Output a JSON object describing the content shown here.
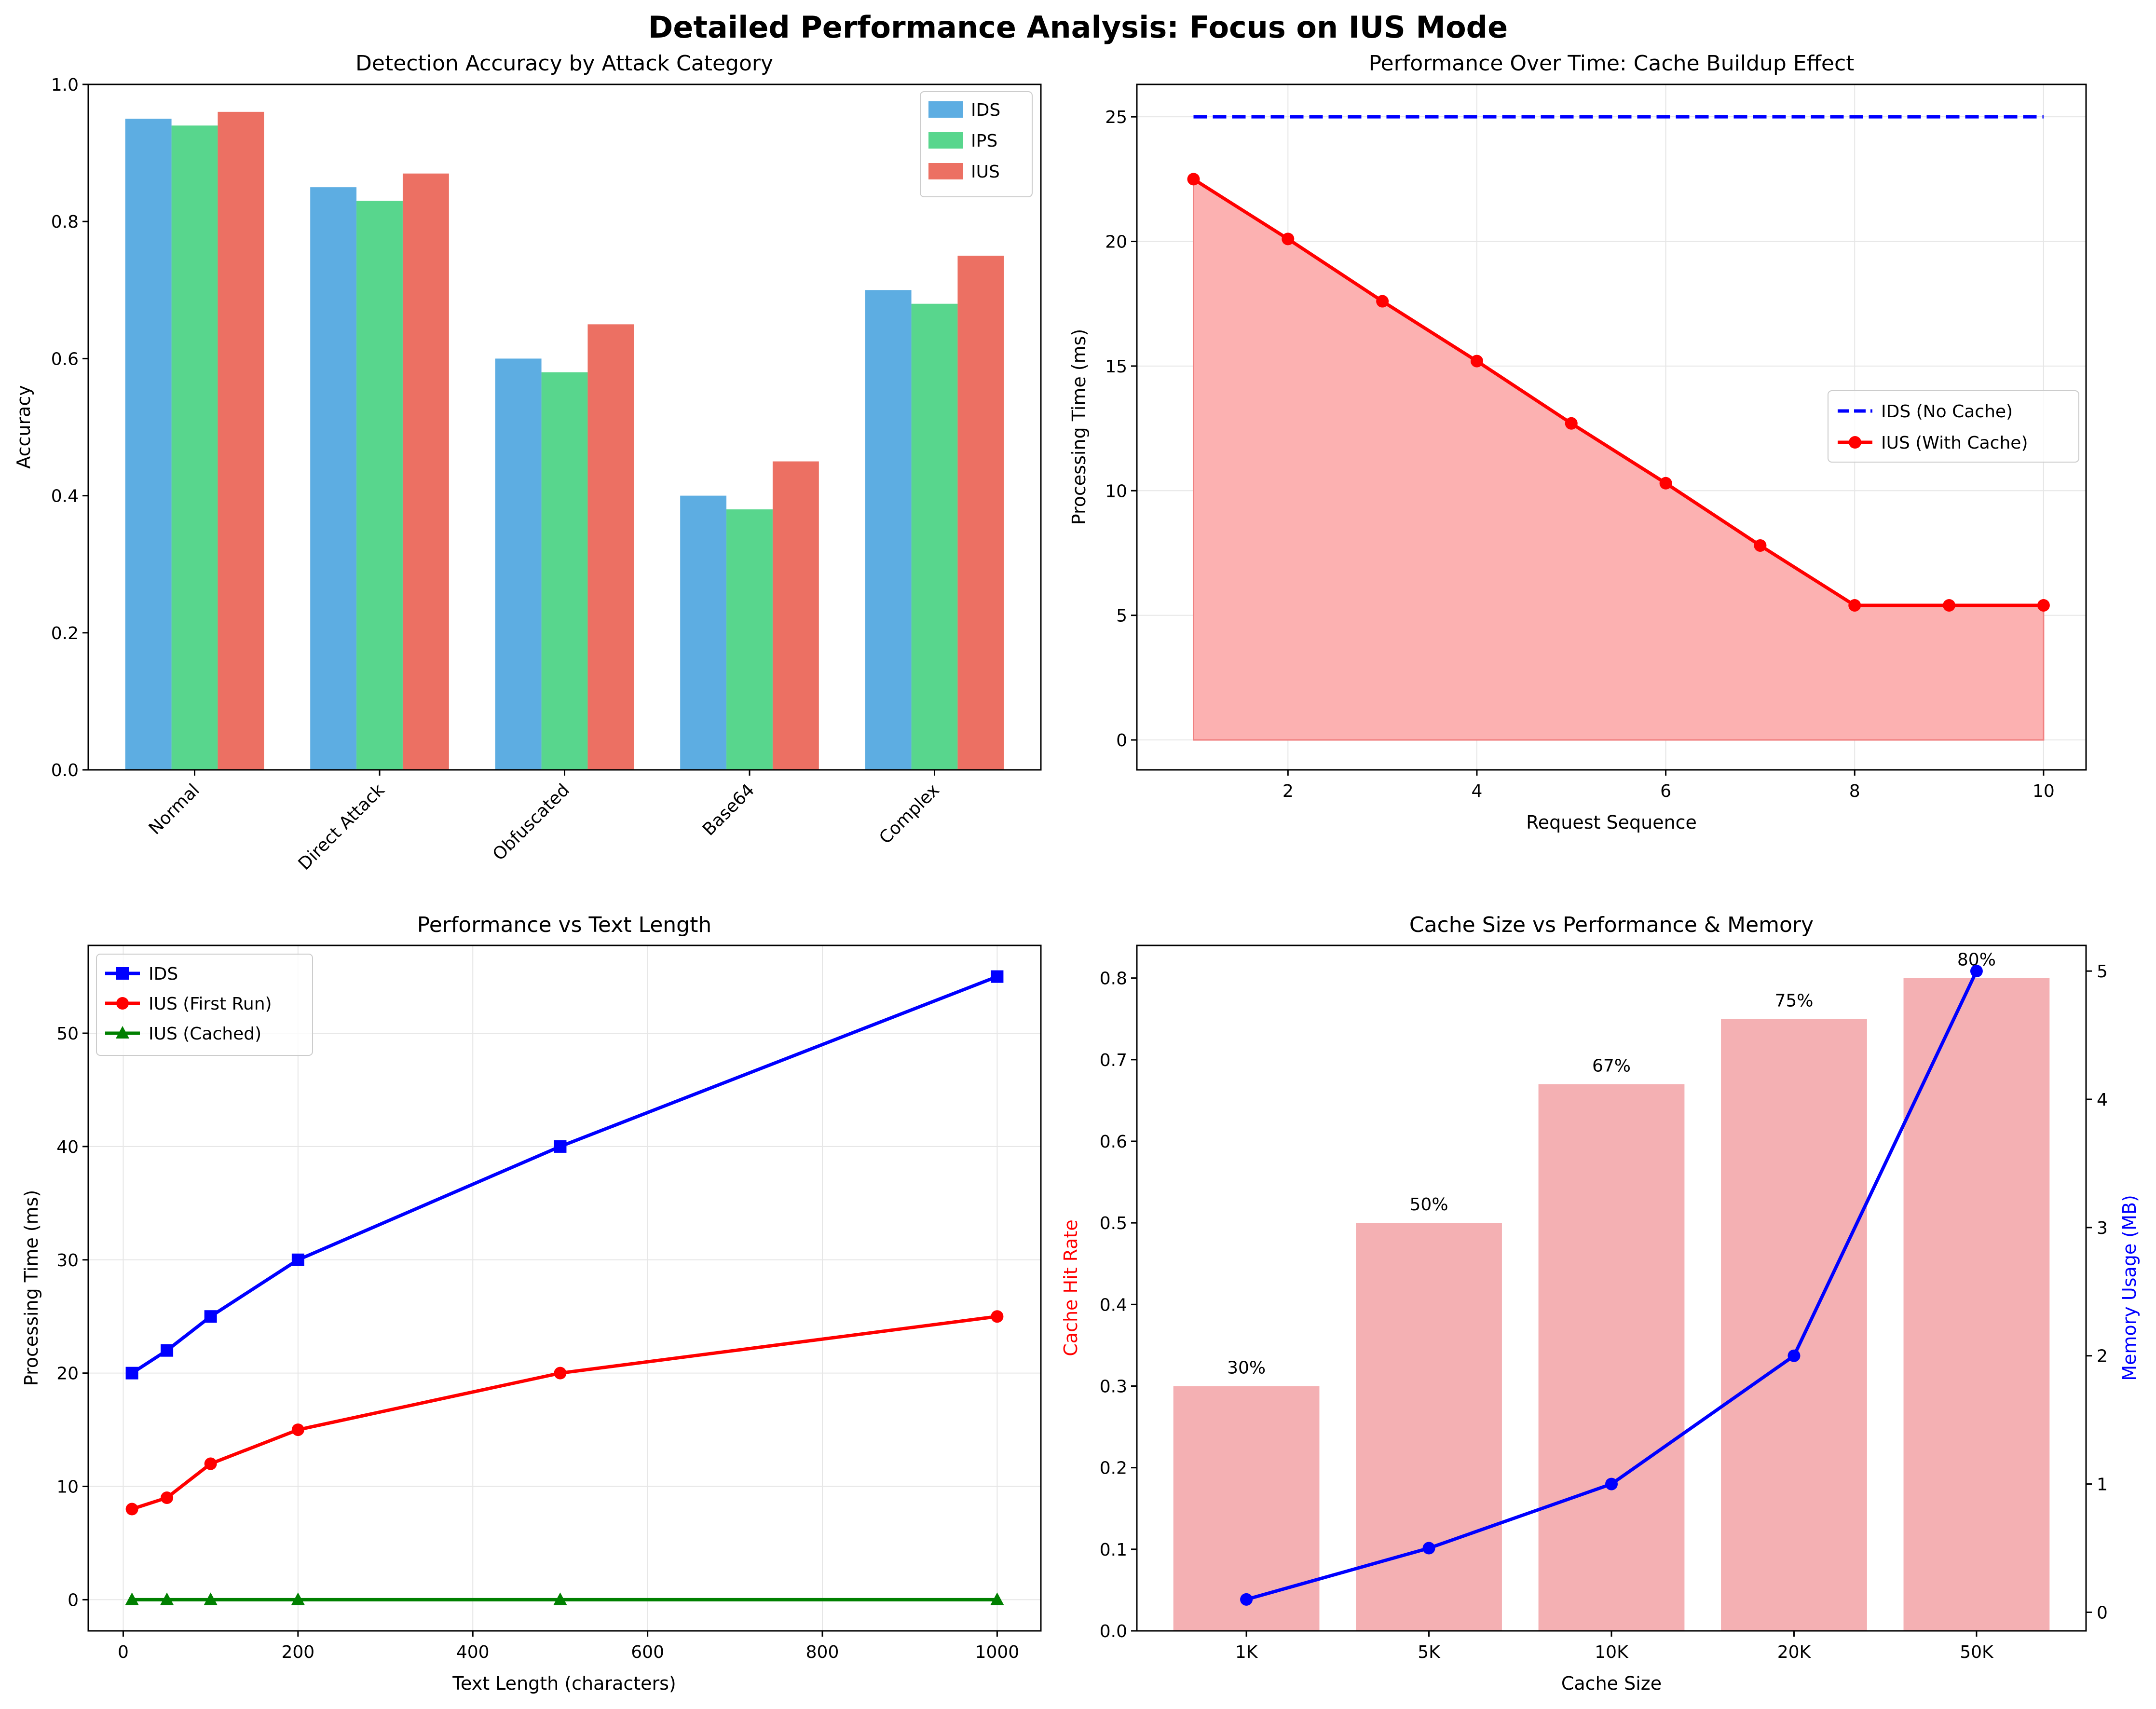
{
  "figure": {
    "title": "Detailed Performance Analysis: Focus on IUS Mode"
  },
  "colors": {
    "ids_bar": "#5dade2",
    "ips_bar": "#58d68d",
    "ius_bar": "#ec7063",
    "ids_line": "#0000ff",
    "ius_line": "#ff0000",
    "ius_cached": "#008000",
    "fill": "#fcb1b1",
    "cache_bar": "#f4b0b3",
    "grid": "#e6e6e6",
    "axis": "#000000"
  },
  "chart_data": [
    {
      "type": "bar",
      "title": "Detection Accuracy by Attack Category",
      "xlabel": "",
      "ylabel": "Accuracy",
      "ylim": [
        0,
        1.0
      ],
      "yticks": [
        "0.0",
        "0.2",
        "0.4",
        "0.6",
        "0.8",
        "1.0"
      ],
      "grid": false,
      "legend": "top-right",
      "categories": [
        "Normal",
        "Direct Attack",
        "Obfuscated",
        "Base64",
        "Complex"
      ],
      "series": [
        {
          "name": "IDS",
          "values": [
            0.95,
            0.85,
            0.6,
            0.4,
            0.7
          ]
        },
        {
          "name": "IPS",
          "values": [
            0.94,
            0.83,
            0.58,
            0.38,
            0.68
          ]
        },
        {
          "name": "IUS",
          "values": [
            0.96,
            0.87,
            0.65,
            0.45,
            0.75
          ]
        }
      ]
    },
    {
      "type": "line",
      "title": "Performance Over Time: Cache Buildup Effect",
      "xlabel": "Request Sequence",
      "ylabel": "Processing Time (ms)",
      "xlim": [
        0.4,
        10.45
      ],
      "ylim": [
        -1.2,
        26.3
      ],
      "xticks": [
        "2",
        "4",
        "6",
        "8",
        "10"
      ],
      "yticks": [
        "0",
        "5",
        "10",
        "15",
        "20",
        "25"
      ],
      "grid": true,
      "legend": "center-right",
      "x": [
        1,
        2,
        3,
        4,
        5,
        6,
        7,
        8,
        9,
        10
      ],
      "series": [
        {
          "name": "IDS (No Cache)",
          "style": "dashed",
          "values": [
            25,
            25,
            25,
            25,
            25,
            25,
            25,
            25,
            25,
            25
          ]
        },
        {
          "name": "IUS (With Cache)",
          "style": "solid-marker-fill",
          "values": [
            22.5,
            20.1,
            17.6,
            15.2,
            12.7,
            10.3,
            7.8,
            5.4,
            5.4,
            5.4
          ]
        }
      ]
    },
    {
      "type": "line",
      "title": "Performance vs Text Length",
      "xlabel": "Text Length (characters)",
      "ylabel": "Processing Time (ms)",
      "xlim": [
        -40,
        1050
      ],
      "ylim": [
        -2.75,
        57.75
      ],
      "xticks": [
        "0",
        "200",
        "400",
        "600",
        "800",
        "1000"
      ],
      "yticks": [
        "0",
        "10",
        "20",
        "30",
        "40",
        "50"
      ],
      "grid": true,
      "legend": "top-left",
      "x": [
        10,
        50,
        100,
        200,
        500,
        1000
      ],
      "series": [
        {
          "name": "IDS",
          "marker": "square",
          "values": [
            20,
            22,
            25,
            30,
            40,
            55
          ]
        },
        {
          "name": "IUS (First Run)",
          "marker": "circle",
          "values": [
            8,
            9,
            12,
            15,
            20,
            25
          ]
        },
        {
          "name": "IUS (Cached)",
          "marker": "triangle",
          "values": [
            0,
            0,
            0,
            0,
            0,
            0
          ]
        }
      ]
    },
    {
      "type": "bar",
      "title": "Cache Size vs Performance & Memory",
      "xlabel": "Cache Size",
      "ylabel": "Cache Hit Rate",
      "ylabel_right": "Memory Usage (MB)",
      "ylim": [
        0,
        0.84
      ],
      "ylim_right": [
        -0.145,
        5.2
      ],
      "yticks": [
        "0.0",
        "0.1",
        "0.2",
        "0.3",
        "0.4",
        "0.5",
        "0.6",
        "0.7",
        "0.8"
      ],
      "yticks_right": [
        "0",
        "1",
        "2",
        "3",
        "4",
        "5"
      ],
      "grid": false,
      "categories": [
        "1K",
        "5K",
        "10K",
        "20K",
        "50K"
      ],
      "series": [
        {
          "name": "Cache Hit Rate",
          "values": [
            0.3,
            0.5,
            0.67,
            0.75,
            0.8
          ],
          "labels": [
            "30%",
            "50%",
            "67%",
            "75%",
            "80%"
          ]
        },
        {
          "name": "Memory Usage (MB)",
          "axis": "right",
          "values": [
            0.1,
            0.5,
            1.0,
            2.0,
            5.0
          ]
        }
      ]
    }
  ]
}
